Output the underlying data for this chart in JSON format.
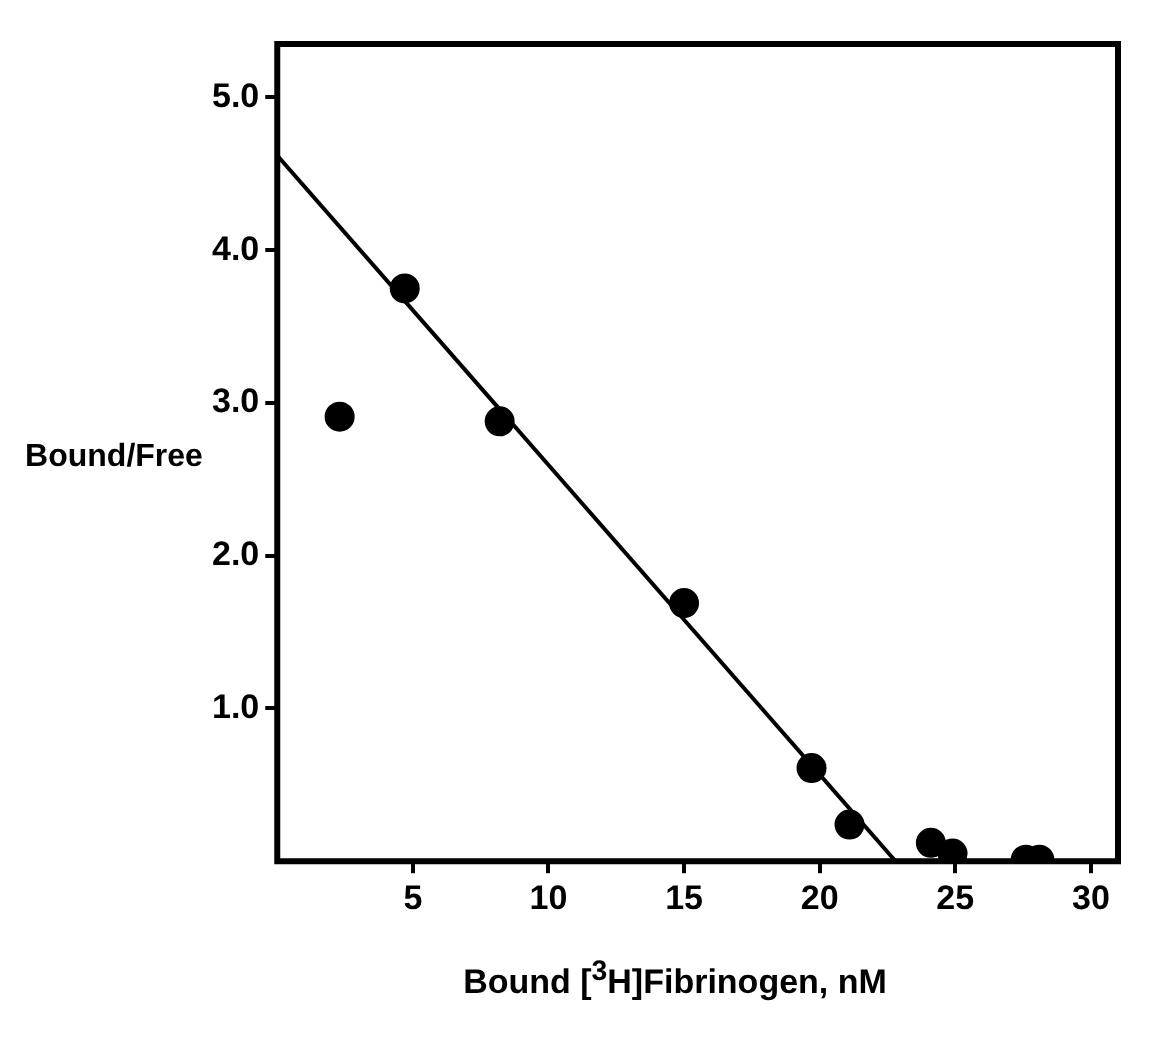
{
  "chart_data": {
    "type": "scatter",
    "xlabel": "Bound [$^{3}$H]Fibrinogen, nM",
    "ylabel": "Bound/Free",
    "xlim": [
      0,
      31
    ],
    "xticks": [
      5,
      10,
      15,
      20,
      25,
      30
    ],
    "ylim": [
      0,
      5.35
    ],
    "yticks": [
      {
        "value": 1,
        "label": "1.0"
      },
      {
        "value": 2,
        "label": "2.0"
      },
      {
        "value": 3,
        "label": "3.0"
      },
      {
        "value": 4,
        "label": "4.0"
      },
      {
        "value": 5,
        "label": "5.0"
      }
    ],
    "grid": false,
    "legend": false,
    "series": [
      {
        "type": "scatter",
        "marker": "circle",
        "color": "#000000",
        "x": [
          2.3,
          4.7,
          8.2,
          15.0,
          19.7,
          21.1,
          24.1,
          24.9,
          27.6,
          28.1
        ],
        "values": [
          2.91,
          3.75,
          2.88,
          1.69,
          0.61,
          0.24,
          0.12,
          0.05,
          0.01,
          0.01
        ]
      },
      {
        "type": "line",
        "marker": "none",
        "color": "#000000",
        "x": [
          0,
          22.8
        ],
        "values": [
          4.62,
          0
        ]
      }
    ]
  }
}
